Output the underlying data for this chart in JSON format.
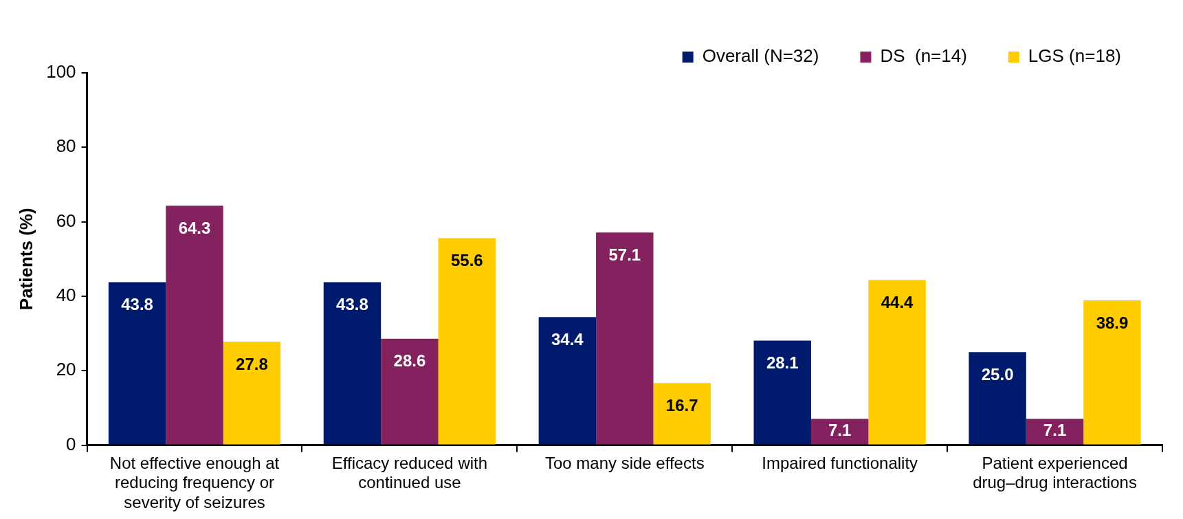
{
  "chart_data": {
    "type": "bar",
    "ylabel": "Patients (%)",
    "categories": [
      "Not effective enough at reducing frequency or severity of seizures",
      "Efficacy reduced with continued use",
      "Too many side effects",
      "Impaired functionality",
      "Patient experienced drug–drug interactions"
    ],
    "series": [
      {
        "name": "Overall (N=32)",
        "color": "#001a6e",
        "values": [
          43.8,
          43.8,
          34.4,
          28.1,
          25.0
        ],
        "value_labels": [
          "43.8",
          "43.8",
          "34.4",
          "28.1",
          "25.0"
        ]
      },
      {
        "name": "DS  (n=14)",
        "color": "#84215f",
        "values": [
          64.3,
          28.6,
          57.1,
          7.1,
          7.1
        ],
        "value_labels": [
          "64.3",
          "28.6",
          "57.1",
          "7.1",
          "7.1"
        ]
      },
      {
        "name": "LGS (n=18)",
        "color": "#ffcc00",
        "values": [
          27.8,
          55.6,
          16.7,
          44.4,
          38.9
        ],
        "value_labels": [
          "27.8",
          "55.6",
          "16.7",
          "44.4",
          "38.9"
        ]
      }
    ],
    "ylim": [
      0,
      100
    ],
    "yticks": [
      0,
      20,
      40,
      60,
      80,
      100
    ],
    "grid": false,
    "legend": "top right"
  }
}
